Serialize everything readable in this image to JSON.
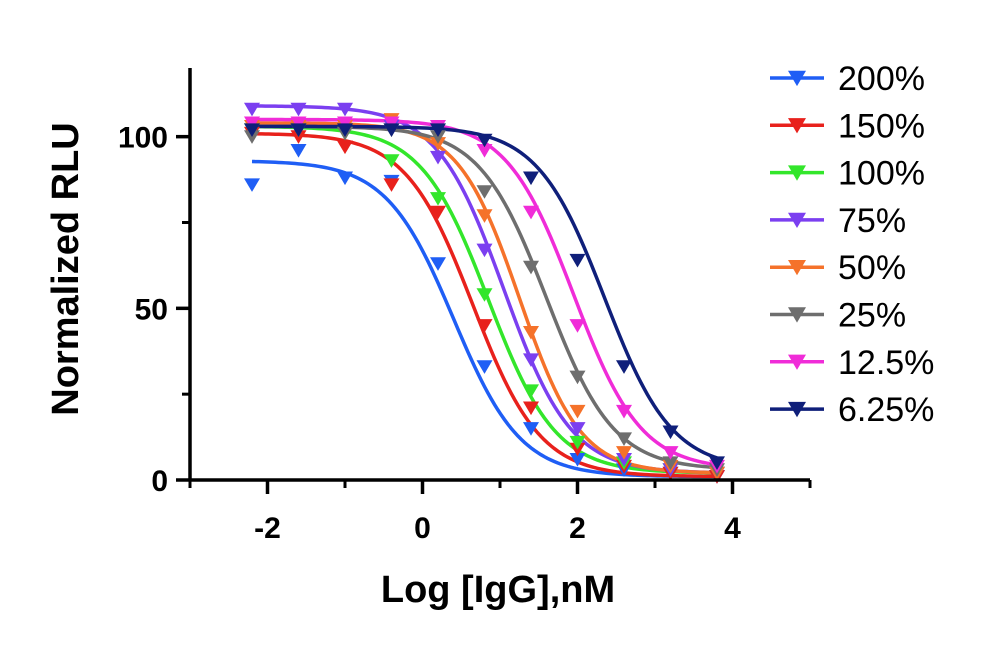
{
  "chart_data": {
    "type": "scatter",
    "title": "",
    "xlabel": "Log [IgG],nM",
    "ylabel": "Normalized RLU",
    "xlim": [
      -3,
      5
    ],
    "ylim": [
      0,
      120
    ],
    "xticks": [
      -2,
      0,
      2,
      4
    ],
    "yticks": [
      0,
      50,
      100
    ],
    "grid": false,
    "legend_position": "right",
    "fit": "four-parameter logistic",
    "x": [
      -2.2,
      -1.6,
      -1.0,
      -0.4,
      0.2,
      0.8,
      1.4,
      2.0,
      2.6,
      3.2,
      3.8
    ],
    "series": [
      {
        "name": "200%",
        "color": "#1f5ef5",
        "values": [
          86,
          96,
          88,
          87,
          63,
          33,
          15,
          6,
          3,
          2,
          1
        ],
        "fit": {
          "bottom": 1,
          "top": 93,
          "ec50_log": 0.4,
          "hill": 1.0
        }
      },
      {
        "name": "150%",
        "color": "#e8211c",
        "values": [
          101,
          100,
          97,
          86,
          78,
          45,
          21,
          9,
          4,
          2,
          1
        ],
        "fit": {
          "bottom": 1,
          "top": 101,
          "ec50_log": 0.65,
          "hill": 1.0
        }
      },
      {
        "name": "100%",
        "color": "#33e62b",
        "values": [
          102,
          102,
          101,
          93,
          82,
          54,
          26,
          11,
          5,
          3,
          2
        ],
        "fit": {
          "bottom": 2,
          "top": 103,
          "ec50_log": 0.85,
          "hill": 1.0
        }
      },
      {
        "name": "75%",
        "color": "#7b3ff0",
        "values": [
          108,
          108,
          108,
          103,
          94,
          67,
          35,
          15,
          6,
          3,
          2
        ],
        "fit": {
          "bottom": 2,
          "top": 109,
          "ec50_log": 1.05,
          "hill": 1.0
        }
      },
      {
        "name": "50%",
        "color": "#f5722a",
        "values": [
          103,
          103,
          103,
          105,
          98,
          77,
          43,
          20,
          8,
          4,
          2
        ],
        "fit": {
          "bottom": 2,
          "top": 104,
          "ec50_log": 1.25,
          "hill": 1.1
        }
      },
      {
        "name": "25%",
        "color": "#6e6e6e",
        "values": [
          100,
          102,
          101,
          102,
          100,
          84,
          62,
          30,
          12,
          5,
          3
        ],
        "fit": {
          "bottom": 3,
          "top": 103,
          "ec50_log": 1.6,
          "hill": 1.0
        }
      },
      {
        "name": "12.5%",
        "color": "#f02cd8",
        "values": [
          104,
          104,
          104,
          104,
          103,
          96,
          78,
          45,
          20,
          8,
          4
        ],
        "fit": {
          "bottom": 3,
          "top": 105,
          "ec50_log": 1.95,
          "hill": 1.0
        }
      },
      {
        "name": "6.25%",
        "color": "#0f1f7a",
        "values": [
          102,
          102,
          102,
          102,
          102,
          99,
          88,
          64,
          33,
          14,
          5
        ],
        "fit": {
          "bottom": 3,
          "top": 103,
          "ec50_log": 2.35,
          "hill": 1.0
        }
      }
    ]
  }
}
